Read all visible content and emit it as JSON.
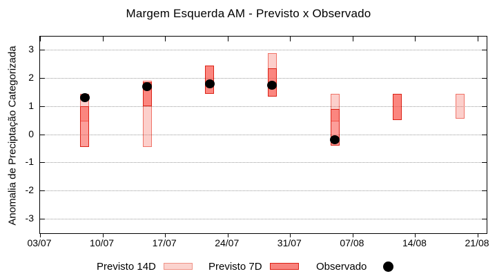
{
  "title": "Margem Esquerda AM - Previsto x Observado",
  "y_axis_label": "Anomalia de Preciptação Categorizada",
  "legend": {
    "previsto_14d_label": "Previsto 14D",
    "previsto_7d_label": "Previsto 7D",
    "observado_label": "Observado"
  },
  "colors": {
    "previsto_14d_fill": "rgba(246,106,92,0.32)",
    "previsto_14d_border": "rgba(236,98,86,0.85)",
    "previsto_7d_fill": "rgba(250,62,52,0.50)",
    "previsto_7d_border": "#da2014",
    "legend_14d_fill": "#fbd3ce",
    "legend_14d_border": "#ef9286",
    "legend_7d_fill": "#f8837d",
    "legend_7d_border": "#da2014",
    "observado": "#000000",
    "grid": "#999999",
    "frame": "#000000"
  },
  "chart_data": {
    "type": "bar",
    "title": "Margem Esquerda AM - Previsto x Observado",
    "xlabel": "",
    "ylabel": "Anomalia de Preciptação Categorizada",
    "ylim": [
      -3.5,
      3.5
    ],
    "xlim_days": [
      0,
      50
    ],
    "grid": "horizontal-dotted",
    "legend_position": "bottom",
    "y_ticks": [
      3,
      2,
      1,
      0,
      -1,
      -2,
      -3
    ],
    "x_ticks": [
      {
        "label": "03/07",
        "day": 0
      },
      {
        "label": "10/07",
        "day": 7
      },
      {
        "label": "17/07",
        "day": 14
      },
      {
        "label": "24/07",
        "day": 21
      },
      {
        "label": "31/07",
        "day": 28
      },
      {
        "label": "07/08",
        "day": 35
      },
      {
        "label": "14/08",
        "day": 42
      },
      {
        "label": "21/08",
        "day": 49
      }
    ],
    "bars": [
      {
        "date": "08/07",
        "day": 5,
        "previsto_14d": [
          0.45,
          1.45
        ],
        "previsto_7d": [
          -0.45,
          1.0
        ],
        "observado": 1.3
      },
      {
        "date": "15/07",
        "day": 12,
        "previsto_14d": [
          -0.45,
          1.9
        ],
        "previsto_7d": [
          1.0,
          1.85
        ],
        "observado": 1.7
      },
      {
        "date": "22/07",
        "day": 19,
        "previsto_14d": [
          1.45,
          2.45
        ],
        "previsto_7d": [
          1.45,
          2.45
        ],
        "observado": 1.8
      },
      {
        "date": "29/07",
        "day": 26,
        "previsto_14d": [
          1.35,
          2.9
        ],
        "previsto_7d": [
          1.35,
          2.35
        ],
        "observado": 1.75
      },
      {
        "date": "05/08",
        "day": 33,
        "previsto_14d": [
          0.45,
          1.45
        ],
        "previsto_7d": [
          -0.4,
          0.9
        ],
        "observado": -0.2
      },
      {
        "date": "12/08",
        "day": 40,
        "previsto_14d": [
          0.5,
          1.45
        ],
        "previsto_7d": [
          0.5,
          1.45
        ],
        "observado": null
      },
      {
        "date": "19/08",
        "day": 47,
        "previsto_14d": [
          0.55,
          1.45
        ],
        "previsto_7d": null,
        "observado": null
      }
    ]
  }
}
